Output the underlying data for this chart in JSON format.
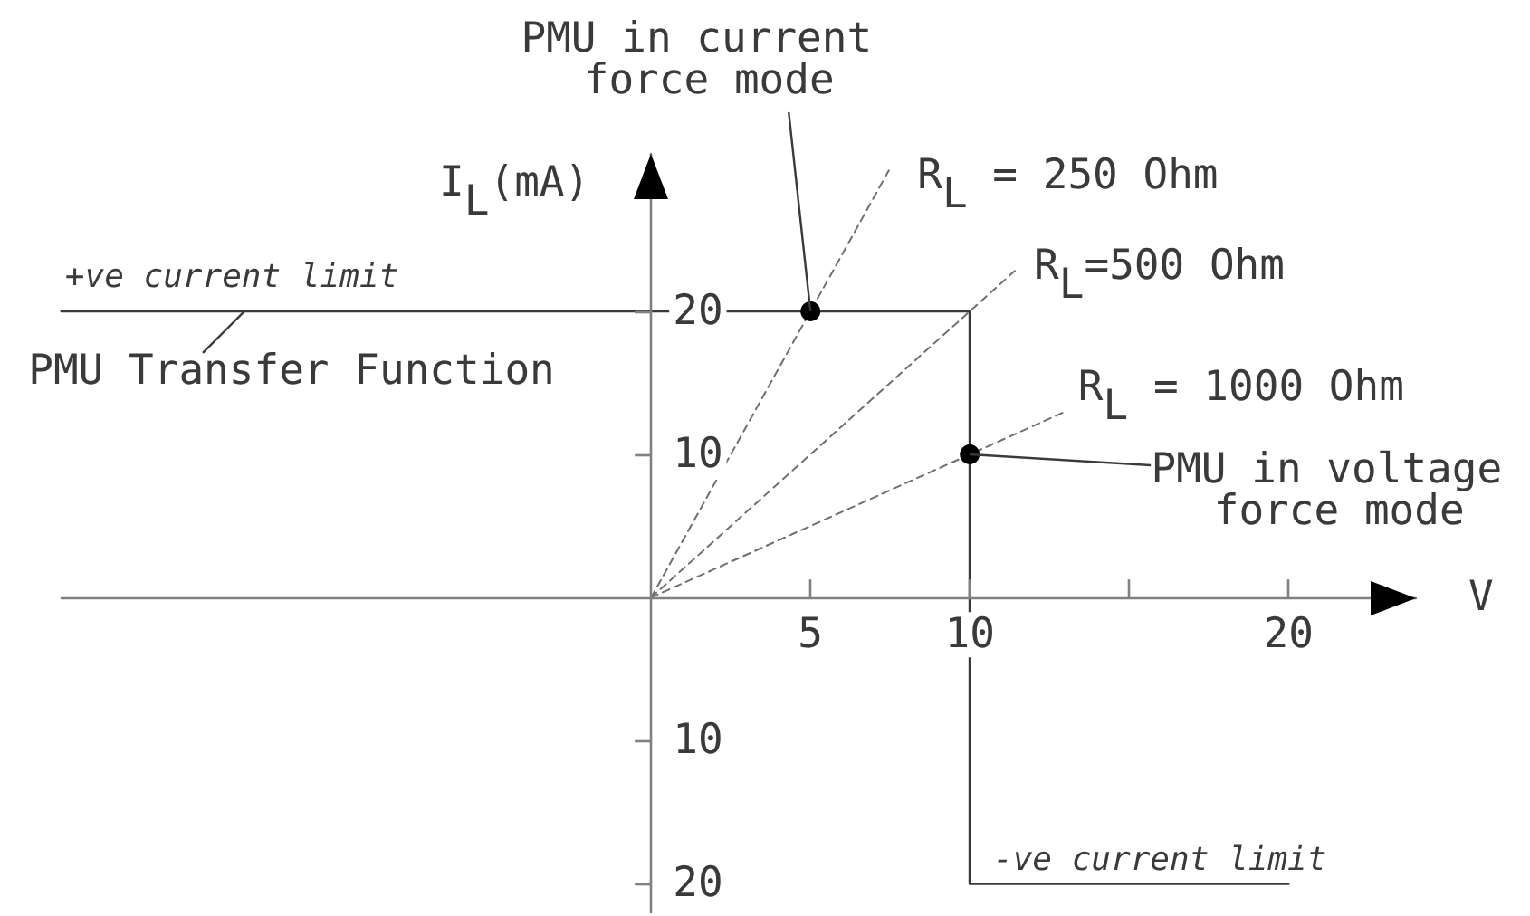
{
  "chart_data": {
    "type": "line",
    "xlabel": "V",
    "ylabel": "I$_{L}$(mA)",
    "xlim": [
      -18.5,
      24
    ],
    "ylim": [
      -22,
      31
    ],
    "xticks": [
      5,
      10,
      {
        "value": 15,
        "label": null
      },
      20
    ],
    "yticks": [
      {
        "value": -20,
        "label": "20"
      },
      {
        "value": -10,
        "label": "10"
      },
      10,
      20
    ],
    "grid": false,
    "marker": "none",
    "line_style": "solid",
    "series": [
      {
        "color": "#3a3a3a",
        "x": [
          -18.5,
          10,
          10,
          20
        ],
        "values": [
          20,
          20,
          -20,
          -20
        ]
      },
      {
        "name": "R$_{L}$ = 250 Ohm",
        "color": "#707070",
        "line_style": "dashed",
        "x": [
          0,
          7.5
        ],
        "values": [
          0,
          30
        ]
      },
      {
        "name": "R$_{L}$=500 Ohm",
        "color": "#707070",
        "line_style": "dashed",
        "x": [
          0,
          11.5
        ],
        "values": [
          0,
          23
        ]
      },
      {
        "name": "R$_{L}$ = 1000 Ohm",
        "color": "#707070",
        "line_style": "dashed",
        "x": [
          0,
          13
        ],
        "values": [
          0,
          13
        ]
      },
      {
        "type": "scatter",
        "color": "#000000",
        "marker": "circle",
        "x": [
          5,
          10
        ],
        "values": [
          20,
          10
        ]
      }
    ],
    "annotations": [
      {
        "text": "PMU in current force mode",
        "x": 5,
        "y": 20
      },
      "+ve current limit",
      "PMU Transfer Function",
      "PMU in voltage force mode",
      "-ve current limit"
    ]
  }
}
